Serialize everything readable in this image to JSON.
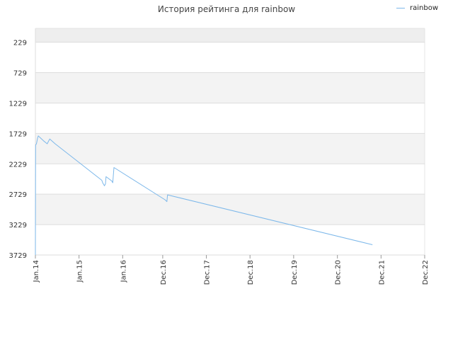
{
  "chart_data": {
    "type": "line",
    "title": "История рейтинга для rainbow",
    "xlabel": "",
    "ylabel": "",
    "y_axis_inverted": true,
    "ylim": [
      3729,
      0
    ],
    "y_ticks": [
      229,
      729,
      1229,
      1729,
      2229,
      2729,
      3229,
      3729
    ],
    "x_ticks": [
      {
        "label": "Jan.14",
        "date": "2014-01-01"
      },
      {
        "label": "Jan.15",
        "date": "2015-01-01"
      },
      {
        "label": "Jan.16",
        "date": "2016-01-01"
      },
      {
        "label": "Dec.16",
        "date": "2016-12-01"
      },
      {
        "label": "Dec.17",
        "date": "2017-12-01"
      },
      {
        "label": "Dec.18",
        "date": "2018-12-01"
      },
      {
        "label": "Dec.19",
        "date": "2019-12-01"
      },
      {
        "label": "Dec.20",
        "date": "2020-12-01"
      },
      {
        "label": "Dec.21",
        "date": "2021-12-01"
      },
      {
        "label": "Dec.22",
        "date": "2022-12-01"
      }
    ],
    "grid": true,
    "legend_position": "top-right",
    "series": [
      {
        "name": "rainbow",
        "color": "#7db8ea",
        "points": [
          {
            "x": "2014-01-01",
            "y": 3729
          },
          {
            "x": "2014-01-03",
            "y": 1920
          },
          {
            "x": "2014-01-10",
            "y": 1900
          },
          {
            "x": "2014-01-20",
            "y": 1800
          },
          {
            "x": "2014-01-25",
            "y": 1770
          },
          {
            "x": "2014-03-10",
            "y": 1850
          },
          {
            "x": "2014-04-10",
            "y": 1900
          },
          {
            "x": "2014-04-20",
            "y": 1860
          },
          {
            "x": "2014-05-01",
            "y": 1820
          },
          {
            "x": "2014-06-15",
            "y": 1900
          },
          {
            "x": "2015-07-10",
            "y": 2500
          },
          {
            "x": "2015-07-20",
            "y": 2550
          },
          {
            "x": "2015-07-27",
            "y": 2570
          },
          {
            "x": "2015-08-01",
            "y": 2590
          },
          {
            "x": "2015-08-10",
            "y": 2560
          },
          {
            "x": "2015-08-15",
            "y": 2440
          },
          {
            "x": "2015-10-01",
            "y": 2510
          },
          {
            "x": "2015-10-10",
            "y": 2540
          },
          {
            "x": "2015-10-20",
            "y": 2290
          },
          {
            "x": "2016-12-20",
            "y": 2820
          },
          {
            "x": "2017-01-05",
            "y": 2850
          },
          {
            "x": "2017-01-10",
            "y": 2740
          },
          {
            "x": "2021-09-20",
            "y": 3560
          }
        ]
      }
    ]
  }
}
